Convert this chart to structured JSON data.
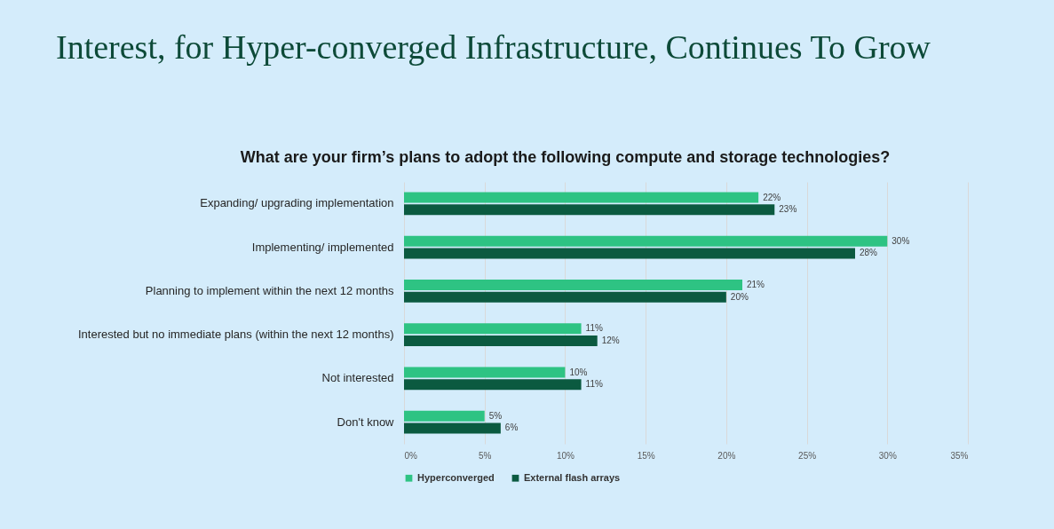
{
  "chart_data": {
    "type": "bar",
    "orientation": "horizontal",
    "title": "Interest, for Hyper-converged Infrastructure, Continues To Grow",
    "subtitle": "What are your firm’s plans to adopt the following compute and storage technologies?",
    "categories": [
      "Expanding/ upgrading implementation",
      "Implementing/ implemented",
      "Planning to implement within the next 12 months",
      "Interested but no immediate plans (within the next 12 months)",
      "Not interested",
      "Don't know"
    ],
    "series": [
      {
        "name": "Hyperconverged",
        "color": "#2ec383",
        "values": [
          22,
          30,
          21,
          11,
          10,
          5
        ],
        "value_labels": [
          "22%",
          "30%",
          "21%",
          "11%",
          "10%",
          "5%"
        ]
      },
      {
        "name": "External flash arrays",
        "color": "#0b5a40",
        "values": [
          23,
          28,
          20,
          12,
          11,
          6
        ],
        "value_labels": [
          "23%",
          "28%",
          "20%",
          "12%",
          "11%",
          "6%"
        ]
      }
    ],
    "xlim": [
      0,
      35
    ],
    "xticks": [
      {
        "value": 0,
        "label": "0%"
      },
      {
        "value": 5,
        "label": "5%"
      },
      {
        "value": 10,
        "label": "10%"
      },
      {
        "value": 15,
        "label": "15%"
      },
      {
        "value": 20,
        "label": "20%"
      },
      {
        "value": 25,
        "label": "25%"
      },
      {
        "value": 30,
        "label": "30%"
      },
      {
        "value": 35,
        "label": "35%"
      }
    ],
    "grid": "x",
    "legend": "bottom"
  }
}
